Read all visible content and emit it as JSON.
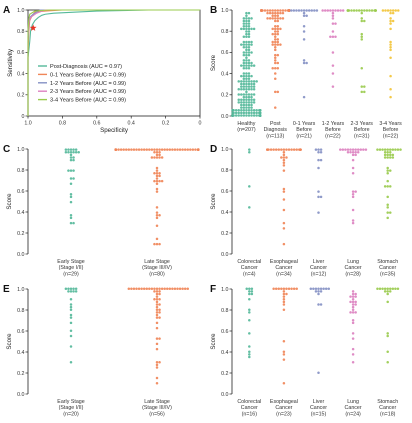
{
  "colors": {
    "healthy": "#55b99a",
    "post": "#f08658",
    "y01": "#8591c4",
    "y12": "#dc82c0",
    "y23": "#9acb4e",
    "y34": "#f2c43a",
    "early": "#55b99a",
    "late": "#f08658",
    "red_marker": "#e83223"
  },
  "chart_data": [
    {
      "panel": "A",
      "type": "line",
      "xlabel": "Specificity",
      "ylabel": "Sensitivity",
      "x_ticks": [
        "1.0",
        "0.8",
        "0.6",
        "0.4",
        "0.2",
        "0"
      ],
      "y_ticks": [
        "0",
        "0.2",
        "0.4",
        "0.6",
        "0.8",
        "1.0"
      ],
      "xlim": [
        1.0,
        0.0
      ],
      "ylim": [
        0,
        1.0
      ],
      "legend_position": "bottom-left",
      "series": [
        {
          "name": "Post-Diagnosis (AUC = 0.97)",
          "color": "#55b99a",
          "points": [
            [
              1,
              0
            ],
            [
              1,
              0.55
            ],
            [
              0.99,
              0.7
            ],
            [
              0.985,
              0.8
            ],
            [
              0.975,
              0.86
            ],
            [
              0.96,
              0.9
            ],
            [
              0.94,
              0.93
            ],
            [
              0.92,
              0.95
            ],
            [
              0.9,
              0.96
            ],
            [
              0.85,
              0.97
            ],
            [
              0.6,
              0.99
            ],
            [
              0.3,
              1
            ],
            [
              0,
              1
            ]
          ]
        },
        {
          "name": "0-1 Years Before (AUC = 0.99)",
          "color": "#f08658",
          "points": [
            [
              1,
              0
            ],
            [
              1,
              0.6
            ],
            [
              0.995,
              0.8
            ],
            [
              0.99,
              0.9
            ],
            [
              0.975,
              0.95
            ],
            [
              0.96,
              0.98
            ],
            [
              0.9,
              0.99
            ],
            [
              0.8,
              1
            ],
            [
              0,
              1
            ]
          ]
        },
        {
          "name": "1-2 Years Before (AUC = 0.99)",
          "color": "#8591c4",
          "points": [
            [
              1,
              0
            ],
            [
              1,
              0.7
            ],
            [
              0.995,
              0.86
            ],
            [
              0.99,
              0.93
            ],
            [
              0.97,
              0.96
            ],
            [
              0.93,
              1
            ],
            [
              0,
              1
            ]
          ]
        },
        {
          "name": "2-3 Years Before (AUC = 0.99)",
          "color": "#dc82c0",
          "points": [
            [
              1,
              0
            ],
            [
              1,
              0.75
            ],
            [
              0.995,
              0.88
            ],
            [
              0.985,
              0.93
            ],
            [
              0.95,
              0.97
            ],
            [
              0.9,
              1
            ],
            [
              0,
              1
            ]
          ]
        },
        {
          "name": "3-4 Years Before (AUC = 0.99)",
          "color": "#9acb4e",
          "points": [
            [
              1,
              0
            ],
            [
              1,
              0.8
            ],
            [
              0.995,
              0.92
            ],
            [
              0.99,
              0.96
            ],
            [
              0.96,
              0.99
            ],
            [
              0.88,
              1
            ],
            [
              0,
              1
            ]
          ]
        }
      ],
      "marker": {
        "x": 0.97,
        "y": 0.83
      }
    },
    {
      "panel": "B",
      "type": "scatter",
      "ylabel": "Score",
      "y_ticks": [
        "0.0",
        "0.2",
        "0.4",
        "0.6",
        "0.8",
        "1.0"
      ],
      "ylim": [
        0,
        1.0
      ],
      "categories": [
        {
          "label": [
            "Healthy",
            "(n=207)"
          ],
          "color": "#55b99a",
          "n": 207,
          "dist": "healthy",
          "seed": 11
        },
        {
          "label": [
            "Post",
            "Diagnosis",
            "(n=113)"
          ],
          "color": "#f08658",
          "n": 113,
          "dist": "high",
          "seed": 12
        },
        {
          "label": [
            "0-1 Years",
            "Before",
            "(n=21)"
          ],
          "color": "#8591c4",
          "n": 21,
          "dist": "high",
          "seed": 13
        },
        {
          "label": [
            "1-2 Years",
            "Before",
            "(n=22)"
          ],
          "color": "#dc82c0",
          "n": 22,
          "dist": "high",
          "seed": 14
        },
        {
          "label": [
            "2-3 Years",
            "Before",
            "(n=31)"
          ],
          "color": "#9acb4e",
          "n": 31,
          "dist": "high",
          "seed": 15
        },
        {
          "label": [
            "3-4 Years",
            "Before",
            "(n=22)"
          ],
          "color": "#f2c43a",
          "n": 22,
          "dist": "high",
          "seed": 16
        }
      ]
    },
    {
      "panel": "C",
      "type": "scatter",
      "ylabel": "Score",
      "y_ticks": [
        "0.0",
        "0.2",
        "0.4",
        "0.6",
        "0.8",
        "1.0"
      ],
      "ylim": [
        0,
        1.0
      ],
      "categories": [
        {
          "label": [
            "Early Stage",
            "(Stage I/II)",
            "(n=29)"
          ],
          "color": "#55b99a",
          "n": 29,
          "dist": "mid",
          "seed": 21
        },
        {
          "label": [
            "Late Stage",
            "(Stage III/IV)",
            "(n=80)"
          ],
          "color": "#f08658",
          "n": 80,
          "dist": "high",
          "seed": 22
        }
      ]
    },
    {
      "panel": "D",
      "type": "scatter",
      "ylabel": "Score",
      "y_ticks": [
        "0.0",
        "0.2",
        "0.4",
        "0.6",
        "0.8",
        "1.0"
      ],
      "ylim": [
        0,
        1.0
      ],
      "categories": [
        {
          "label": [
            "Colorectal",
            "Cancer",
            "(n=4)"
          ],
          "color": "#55b99a",
          "n": 4,
          "dist": "fixed",
          "values": [
            0.99,
            0.98,
            0.65,
            0.45
          ],
          "seed": 31
        },
        {
          "label": [
            "Esophageal",
            "Cancer",
            "(n=34)"
          ],
          "color": "#f08658",
          "n": 34,
          "dist": "high",
          "seed": 32
        },
        {
          "label": [
            "Liver",
            "Cancer",
            "(n=12)"
          ],
          "color": "#8591c4",
          "n": 12,
          "dist": "mid",
          "seed": 33
        },
        {
          "label": [
            "Lung",
            "Cancer",
            "(n=28)"
          ],
          "color": "#dc82c0",
          "n": 28,
          "dist": "mid",
          "seed": 34
        },
        {
          "label": [
            "Stomach",
            "Cancer",
            "(n=35)"
          ],
          "color": "#9acb4e",
          "n": 35,
          "dist": "mid",
          "seed": 35
        }
      ]
    },
    {
      "panel": "E",
      "type": "scatter",
      "ylabel": "Score",
      "y_ticks": [
        "0.0",
        "0.2",
        "0.4",
        "0.6",
        "0.8",
        "1.0"
      ],
      "ylim": [
        0,
        1.0
      ],
      "categories": [
        {
          "label": [
            "Early Stage",
            "(Stage I/II)",
            "(n=20)"
          ],
          "color": "#55b99a",
          "n": 20,
          "dist": "mid",
          "seed": 41
        },
        {
          "label": [
            "Late Stage",
            "(Stage III/IV)",
            "(n=56)"
          ],
          "color": "#f08658",
          "n": 56,
          "dist": "high",
          "seed": 42
        }
      ]
    },
    {
      "panel": "F",
      "type": "scatter",
      "ylabel": "Score",
      "y_ticks": [
        "0.0",
        "0.2",
        "0.4",
        "0.6",
        "0.8",
        "1.0"
      ],
      "ylim": [
        0,
        1.0
      ],
      "categories": [
        {
          "label": [
            "Colorectal",
            "Cancer",
            "(n=16)"
          ],
          "color": "#55b99a",
          "n": 16,
          "dist": "mid",
          "seed": 51
        },
        {
          "label": [
            "Esophageal",
            "Cancer",
            "(n=23)"
          ],
          "color": "#f08658",
          "n": 23,
          "dist": "high",
          "seed": 52
        },
        {
          "label": [
            "Liver",
            "Cancer",
            "(n=15)"
          ],
          "color": "#8591c4",
          "n": 15,
          "dist": "high",
          "seed": 53
        },
        {
          "label": [
            "Lung",
            "Cancer",
            "(n=24)"
          ],
          "color": "#dc82c0",
          "n": 24,
          "dist": "mid",
          "seed": 54
        },
        {
          "label": [
            "Stomach",
            "Cancer",
            "(n=18)"
          ],
          "color": "#9acb4e",
          "n": 18,
          "dist": "high",
          "seed": 55
        }
      ]
    }
  ]
}
